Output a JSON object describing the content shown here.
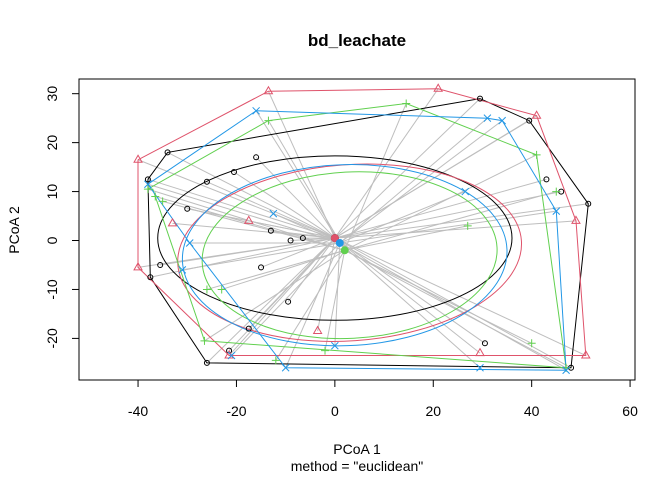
{
  "chart_data": {
    "type": "scatter",
    "title": "bd_leachate",
    "xlabel": "PCoA 1",
    "ylabel": "PCoA 2",
    "subtitle": "method = \"euclidean\"",
    "xlim": [
      -52,
      61
    ],
    "ylim": [
      -28.5,
      33
    ],
    "xticks": [
      -40,
      -20,
      0,
      20,
      40,
      60
    ],
    "yticks": [
      -20,
      -10,
      0,
      10,
      20,
      30
    ],
    "xtick_labels": [
      "-40",
      "-20",
      "0",
      "20",
      "40",
      "60"
    ],
    "ytick_labels": [
      "-20",
      "-10",
      "0",
      "10",
      "20",
      "30"
    ],
    "grid": false,
    "legend": "none",
    "colors": {
      "black": "#000000",
      "red": "#DF536B",
      "green": "#61D04F",
      "blue": "#2297E6",
      "segments": "#BEBEBE"
    },
    "series": [
      {
        "marker": "circle",
        "color": "#000000",
        "centroid": {
          "x": 0.0,
          "y": 0.5
        },
        "ellipse": {
          "cx": 0.0,
          "cy": 0.5,
          "rx": 36.0,
          "ry": 16.8,
          "angle": 0
        },
        "hull": [
          [
            -38,
            12.5
          ],
          [
            -34,
            18
          ],
          [
            29.5,
            29
          ],
          [
            39.5,
            24.5
          ],
          [
            51.5,
            7.5
          ],
          [
            48,
            -26
          ],
          [
            -26,
            -25
          ],
          [
            -37.5,
            -7.5
          ],
          [
            -38,
            12.5
          ]
        ],
        "points": [
          [
            -38,
            12.5
          ],
          [
            -34,
            18
          ],
          [
            29.5,
            29
          ],
          [
            39.5,
            24.5
          ],
          [
            51.5,
            7.5
          ],
          [
            48,
            -26
          ],
          [
            -26,
            -25
          ],
          [
            -37.5,
            -7.5
          ],
          [
            -16,
            17
          ],
          [
            -20.5,
            14
          ],
          [
            -26,
            12
          ],
          [
            -30,
            6.5
          ],
          [
            -35.5,
            -5
          ],
          [
            -13,
            2
          ],
          [
            -9,
            0
          ],
          [
            -6.5,
            0.5
          ],
          [
            -15,
            -5.5
          ],
          [
            -9.5,
            -12.5
          ],
          [
            -17.5,
            -18
          ],
          [
            30.5,
            -21
          ],
          [
            43,
            12.5
          ],
          [
            46,
            10
          ],
          [
            -21.5,
            -22.5
          ]
        ]
      },
      {
        "marker": "triangle",
        "color": "#DF536B",
        "centroid": {
          "x": 0.0,
          "y": 0.5
        },
        "ellipse": {
          "cx": 3.0,
          "cy": -2.5,
          "rx": 35.0,
          "ry": 18.0,
          "angle": -4
        },
        "hull": [
          [
            -40,
            16.5
          ],
          [
            -13.5,
            30.5
          ],
          [
            21,
            31
          ],
          [
            41,
            25.5
          ],
          [
            49,
            4
          ],
          [
            51,
            -23.5
          ],
          [
            -21.5,
            -23.5
          ],
          [
            -40,
            -5.5
          ],
          [
            -40,
            16.5
          ]
        ],
        "points": [
          [
            -40,
            16.5
          ],
          [
            -13.5,
            30.5
          ],
          [
            21,
            31
          ],
          [
            41,
            25.5
          ],
          [
            49,
            4
          ],
          [
            51,
            -23.5
          ],
          [
            -21.5,
            -23.5
          ],
          [
            -40,
            -5.5
          ],
          [
            -33,
            3.5
          ],
          [
            -17.5,
            4
          ],
          [
            -3.5,
            -18.5
          ],
          [
            29.5,
            -23
          ]
        ]
      },
      {
        "marker": "plus",
        "color": "#61D04F",
        "centroid": {
          "x": 2.0,
          "y": -2.0
        },
        "ellipse": {
          "cx": 3.0,
          "cy": -3.0,
          "rx": 30.0,
          "ry": 17.0,
          "angle": -3
        },
        "hull": [
          [
            -38,
            10.5
          ],
          [
            -13.5,
            24.5
          ],
          [
            14.5,
            28
          ],
          [
            41,
            17.5
          ],
          [
            47,
            -26
          ],
          [
            -26.5,
            -20.5
          ],
          [
            -37,
            10.5
          ],
          [
            -38,
            10.5
          ]
        ],
        "points": [
          [
            -38,
            10.5
          ],
          [
            -13.5,
            24.5
          ],
          [
            14.5,
            28
          ],
          [
            41,
            17.5
          ],
          [
            47,
            -26
          ],
          [
            -26.5,
            -20.5
          ],
          [
            -36.5,
            9
          ],
          [
            -35,
            8
          ],
          [
            -26,
            -10
          ],
          [
            -23,
            -10
          ],
          [
            -12,
            -24.5
          ],
          [
            -2,
            -22.5
          ],
          [
            27,
            3
          ],
          [
            40,
            -21
          ],
          [
            45,
            10
          ]
        ]
      },
      {
        "marker": "cross",
        "color": "#2297E6",
        "centroid": {
          "x": 1.0,
          "y": -0.5
        },
        "ellipse": {
          "cx": 2.0,
          "cy": -3.0,
          "rx": 33.0,
          "ry": 18.5,
          "angle": -2
        },
        "hull": [
          [
            -38,
            11.5
          ],
          [
            -16,
            26.5
          ],
          [
            31,
            25
          ],
          [
            34,
            24.5
          ],
          [
            45,
            6
          ],
          [
            47,
            -26.5
          ],
          [
            -10,
            -26
          ],
          [
            -29.5,
            -0.5
          ],
          [
            -38,
            11.5
          ]
        ],
        "points": [
          [
            -38,
            11.5
          ],
          [
            -16,
            26.5
          ],
          [
            31,
            25
          ],
          [
            34,
            24.5
          ],
          [
            45,
            6
          ],
          [
            47,
            -26.5
          ],
          [
            -10,
            -26
          ],
          [
            -29.5,
            -0.5
          ],
          [
            -12.5,
            5.5
          ],
          [
            -21,
            -23.5
          ],
          [
            -31,
            -6
          ],
          [
            0,
            -21.5
          ],
          [
            26.5,
            10
          ],
          [
            29.5,
            -26
          ]
        ]
      }
    ]
  }
}
